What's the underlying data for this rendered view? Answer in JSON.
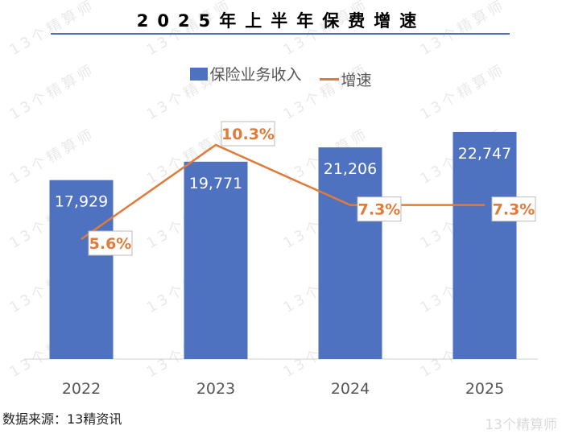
{
  "chart_data": {
    "type": "bar+line",
    "title": "2025年上半年保费增速",
    "categories": [
      "2022",
      "2023",
      "2024",
      "2025"
    ],
    "series": [
      {
        "name": "保险业务收入",
        "type": "bar",
        "values": [
          17929,
          19771,
          21206,
          22747
        ],
        "labels": [
          "17,929",
          "19,771",
          "21,206",
          "22,747"
        ],
        "color": "#4e72c0"
      },
      {
        "name": "增速",
        "type": "line",
        "values": [
          5.6,
          10.3,
          7.3,
          7.3
        ],
        "labels": [
          "5.6%",
          "10.3%",
          "7.3%",
          "7.3%"
        ],
        "color": "#e07b39"
      }
    ],
    "legend": "top",
    "grid": false
  },
  "source": "数据来源：13精资讯",
  "watermark": "13个精算师"
}
